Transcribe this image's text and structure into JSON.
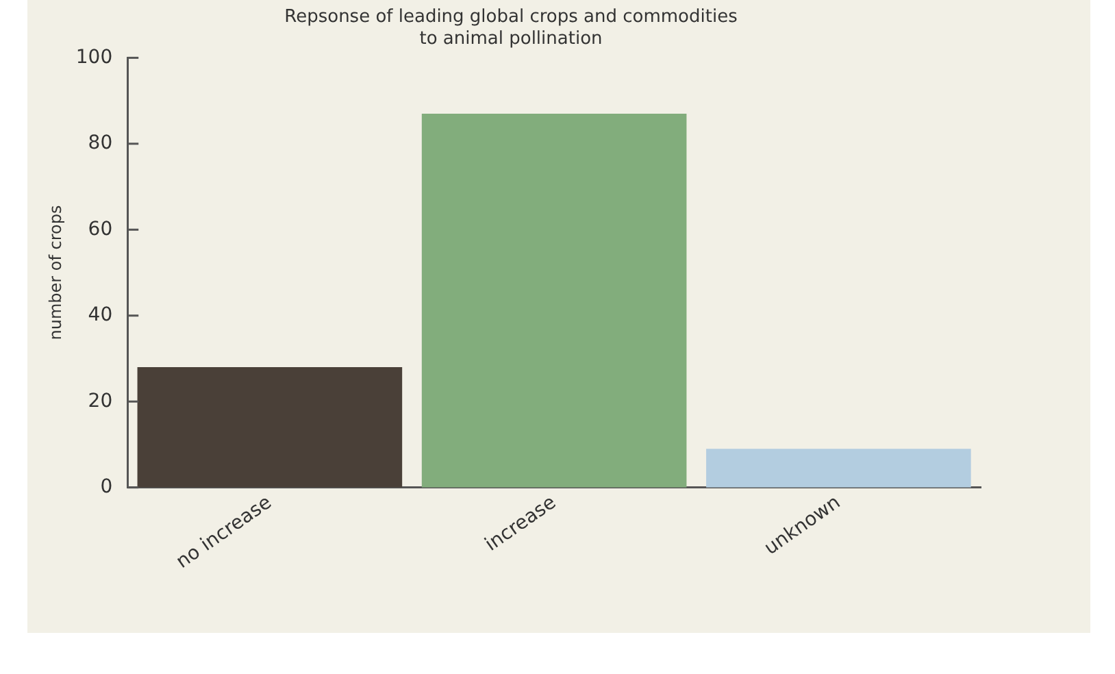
{
  "chart_data": {
    "type": "bar",
    "title": [
      "Repsonse of leading global crops and commodities",
      "to animal pollination"
    ],
    "ylabel": "number of crops",
    "categories": [
      "no increase",
      "increase",
      "unknown"
    ],
    "values": [
      28,
      87,
      9
    ],
    "colors": [
      "#4a4038",
      "#82ad7c",
      "#b3cde0"
    ],
    "ylim": [
      0,
      100
    ],
    "yticks": [
      0,
      20,
      40,
      60,
      80,
      100
    ],
    "grid": false,
    "legend": false
  }
}
